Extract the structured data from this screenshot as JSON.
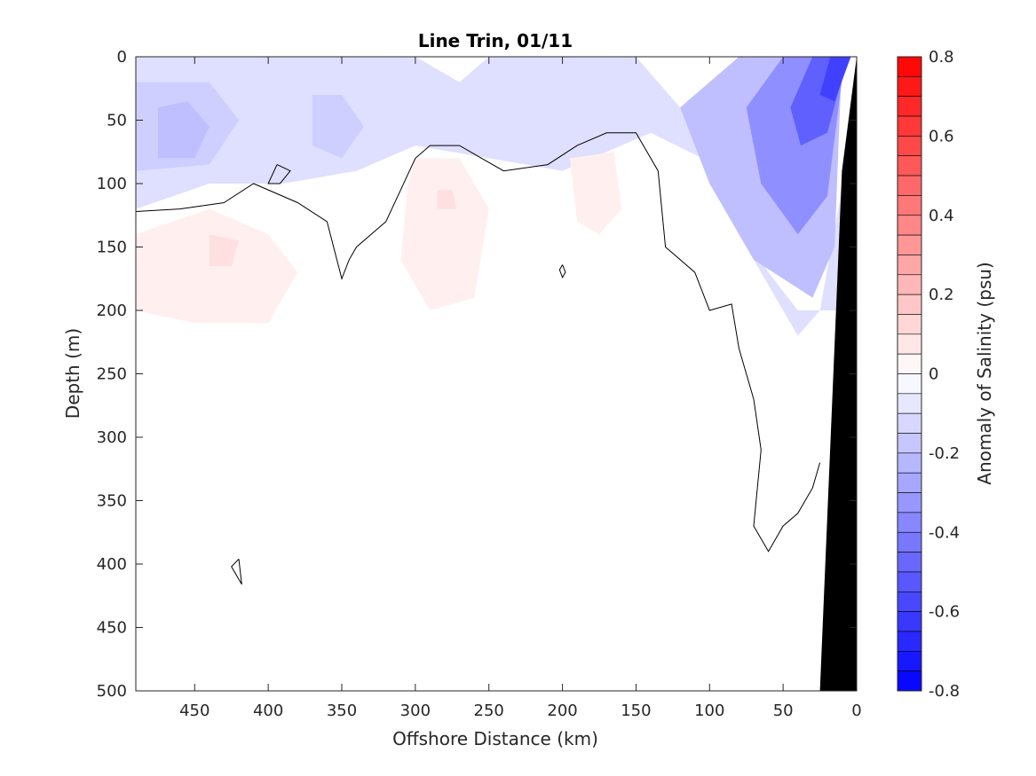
{
  "chart_data": {
    "type": "contour",
    "title": "Line Trin, 01/11",
    "xlabel": "Offshore Distance (km)",
    "ylabel": "Depth (m)",
    "x_axis": {
      "reversed": true,
      "xlim": [
        490,
        0
      ],
      "ticks": [
        450,
        400,
        350,
        300,
        250,
        200,
        150,
        100,
        50,
        0
      ]
    },
    "y_axis": {
      "reversed": true,
      "ylim": [
        0,
        500
      ],
      "ticks": [
        0,
        50,
        100,
        150,
        200,
        250,
        300,
        350,
        400,
        450,
        500
      ]
    },
    "colorbar": {
      "label": "Anomaly of Salinity (psu)",
      "range": [
        -0.8,
        0.8
      ],
      "step": 0.05,
      "ticks": [
        0.8,
        0.6,
        0.4,
        0.2,
        0,
        -0.2,
        -0.4,
        -0.6,
        -0.8
      ],
      "tick_labels": [
        "0.8",
        "0.6",
        "0.4",
        "0.2",
        "0",
        "-0.2",
        "-0.4",
        "-0.6",
        "-0.8"
      ],
      "colormap": "blue-white-red",
      "low_color": "#0000ff",
      "high_color": "#ff0000",
      "mid_color": "#ffffff"
    },
    "zero_contour_color": "#000000",
    "bathymetry_color": "#000000",
    "regions": [
      {
        "name": "surface-fresh-offshore",
        "level": -0.1,
        "points": [
          [
            490,
            0
          ],
          [
            300,
            0
          ],
          [
            285,
            10
          ],
          [
            270,
            20
          ],
          [
            250,
            0
          ],
          [
            150,
            0
          ],
          [
            120,
            40
          ],
          [
            100,
            80
          ],
          [
            90,
            100
          ],
          [
            80,
            130
          ],
          [
            60,
            170
          ],
          [
            40,
            200
          ],
          [
            10,
            200
          ],
          [
            0,
            0
          ],
          [
            0,
            40
          ],
          [
            25,
            200
          ],
          [
            40,
            220
          ],
          [
            80,
            140
          ],
          [
            105,
            80
          ],
          [
            140,
            60
          ],
          [
            200,
            90
          ],
          [
            300,
            70
          ],
          [
            340,
            90
          ],
          [
            390,
            100
          ],
          [
            440,
            100
          ],
          [
            490,
            120
          ]
        ]
      },
      {
        "name": "surface-fresh-core-1",
        "level": -0.15,
        "points": [
          [
            490,
            20
          ],
          [
            440,
            20
          ],
          [
            420,
            50
          ],
          [
            440,
            85
          ],
          [
            490,
            90
          ]
        ]
      },
      {
        "name": "surface-fresh-core-2",
        "level": -0.2,
        "points": [
          [
            475,
            40
          ],
          [
            455,
            35
          ],
          [
            440,
            55
          ],
          [
            450,
            80
          ],
          [
            475,
            80
          ]
        ]
      },
      {
        "name": "surface-fresh-core-3",
        "level": -0.15,
        "points": [
          [
            370,
            30
          ],
          [
            350,
            30
          ],
          [
            335,
            55
          ],
          [
            350,
            80
          ],
          [
            370,
            70
          ]
        ]
      },
      {
        "name": "surface-fresh-core-4",
        "level": -0.1,
        "points": [
          [
            230,
            40
          ],
          [
            210,
            35
          ],
          [
            195,
            45
          ],
          [
            205,
            60
          ],
          [
            230,
            55
          ]
        ]
      },
      {
        "name": "coastal-fresh-1",
        "level": -0.2,
        "points": [
          [
            10,
            0
          ],
          [
            80,
            0
          ],
          [
            120,
            40
          ],
          [
            100,
            100
          ],
          [
            70,
            160
          ],
          [
            30,
            190
          ],
          [
            15,
            150
          ]
        ]
      },
      {
        "name": "coastal-fresh-2",
        "level": -0.35,
        "points": [
          [
            8,
            0
          ],
          [
            50,
            0
          ],
          [
            75,
            40
          ],
          [
            65,
            100
          ],
          [
            40,
            140
          ],
          [
            20,
            110
          ]
        ]
      },
      {
        "name": "coastal-fresh-3",
        "level": -0.5,
        "points": [
          [
            6,
            0
          ],
          [
            30,
            0
          ],
          [
            45,
            40
          ],
          [
            38,
            70
          ],
          [
            20,
            60
          ]
        ]
      },
      {
        "name": "coastal-fresh-4",
        "level": -0.6,
        "points": [
          [
            4,
            0
          ],
          [
            18,
            0
          ],
          [
            25,
            30
          ],
          [
            15,
            35
          ]
        ]
      },
      {
        "name": "salty-lens-1",
        "level": 0.05,
        "points": [
          [
            490,
            140
          ],
          [
            440,
            120
          ],
          [
            400,
            140
          ],
          [
            380,
            170
          ],
          [
            400,
            210
          ],
          [
            450,
            210
          ],
          [
            490,
            200
          ]
        ]
      },
      {
        "name": "salty-lens-1-core",
        "level": 0.1,
        "points": [
          [
            440,
            140
          ],
          [
            420,
            145
          ],
          [
            425,
            165
          ],
          [
            440,
            165
          ]
        ]
      },
      {
        "name": "salty-lens-2",
        "level": 0.05,
        "points": [
          [
            300,
            80
          ],
          [
            270,
            80
          ],
          [
            250,
            120
          ],
          [
            260,
            190
          ],
          [
            290,
            200
          ],
          [
            310,
            160
          ],
          [
            305,
            100
          ]
        ]
      },
      {
        "name": "salty-lens-2-core",
        "level": 0.1,
        "points": [
          [
            285,
            105
          ],
          [
            275,
            105
          ],
          [
            272,
            120
          ],
          [
            285,
            120
          ]
        ]
      },
      {
        "name": "salty-lens-3",
        "level": 0.05,
        "points": [
          [
            195,
            80
          ],
          [
            165,
            75
          ],
          [
            160,
            120
          ],
          [
            175,
            140
          ],
          [
            190,
            130
          ]
        ]
      }
    ],
    "zero_contours": [
      [
        [
          490,
          122
        ],
        [
          460,
          120
        ],
        [
          430,
          115
        ],
        [
          410,
          100
        ],
        [
          380,
          115
        ],
        [
          360,
          130
        ],
        [
          350,
          175
        ],
        [
          345,
          160
        ],
        [
          340,
          150
        ],
        [
          320,
          130
        ],
        [
          300,
          80
        ],
        [
          290,
          70
        ],
        [
          270,
          70
        ],
        [
          255,
          80
        ],
        [
          240,
          90
        ],
        [
          210,
          85
        ],
        [
          190,
          70
        ],
        [
          170,
          60
        ],
        [
          150,
          60
        ],
        [
          135,
          90
        ],
        [
          130,
          150
        ],
        [
          110,
          170
        ],
        [
          100,
          200
        ],
        [
          85,
          195
        ],
        [
          80,
          230
        ],
        [
          70,
          270
        ],
        [
          65,
          310
        ],
        [
          70,
          370
        ],
        [
          60,
          390
        ],
        [
          55,
          380
        ],
        [
          50,
          370
        ],
        [
          40,
          360
        ],
        [
          30,
          340
        ],
        [
          25,
          320
        ]
      ],
      [
        [
          394,
          85
        ],
        [
          385,
          90
        ],
        [
          392,
          100
        ],
        [
          400,
          100
        ],
        [
          394,
          85
        ]
      ],
      [
        [
          420,
          396
        ],
        [
          425,
          402
        ],
        [
          418,
          416
        ],
        [
          420,
          396
        ]
      ],
      [
        [
          200,
          164
        ],
        [
          198,
          170
        ],
        [
          200,
          174
        ],
        [
          202,
          168
        ],
        [
          200,
          164
        ]
      ]
    ],
    "bathymetry": [
      [
        0,
        0
      ],
      [
        10,
        90
      ],
      [
        25,
        500
      ],
      [
        0,
        500
      ]
    ]
  }
}
